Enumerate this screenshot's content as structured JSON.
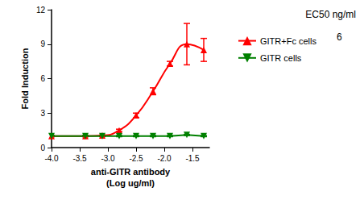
{
  "chart_data": {
    "type": "line",
    "x_label": "anti-GITR antibody\n(Log ug/ml)",
    "y_label": "Fold Induction",
    "annotations": [
      "EC50 ng/ml"
    ],
    "xlim": [
      -4.0,
      -1.2
    ],
    "xticks": [
      {
        "value": -4.0,
        "label": "-4.0"
      },
      {
        "value": -3.5,
        "label": "-3.5"
      },
      {
        "value": -3.0,
        "label": "-3.0"
      },
      {
        "value": -2.5,
        "label": "-2.5"
      },
      {
        "value": -2.0,
        "label": "-2.0"
      },
      {
        "value": -1.5,
        "label": "-1.5"
      }
    ],
    "ylim": [
      0,
      12
    ],
    "yticks": [
      0,
      3,
      6,
      9,
      12
    ],
    "grid": false,
    "legend": "right",
    "series": [
      {
        "name": "GITR+Fc cells",
        "color": "#ff0000",
        "marker": "triangle",
        "line_style": "smooth",
        "ec50": 6,
        "x": [
          -4.0,
          -3.4,
          -3.1,
          -2.8,
          -2.5,
          -2.2,
          -1.9,
          -1.6,
          -1.3
        ],
        "values": [
          1.0,
          1.0,
          1.05,
          1.5,
          2.8,
          4.9,
          7.3,
          9.0,
          8.5
        ],
        "errors": [
          0.05,
          0.05,
          0.05,
          0.1,
          0.2,
          0.3,
          0.2,
          1.8,
          1.0
        ]
      },
      {
        "name": "GITR cells",
        "color": "#008000",
        "marker": "triangle_down",
        "line_style": "solid",
        "x": [
          -4.0,
          -3.4,
          -3.1,
          -2.8,
          -2.5,
          -2.2,
          -1.9,
          -1.6,
          -1.3
        ],
        "values": [
          1.0,
          1.0,
          1.0,
          1.0,
          1.0,
          1.0,
          1.0,
          1.1,
          1.0
        ],
        "errors": [
          0.05,
          0.05,
          0.05,
          0.05,
          0.05,
          0.05,
          0.05,
          0.05,
          0.05
        ]
      }
    ]
  }
}
